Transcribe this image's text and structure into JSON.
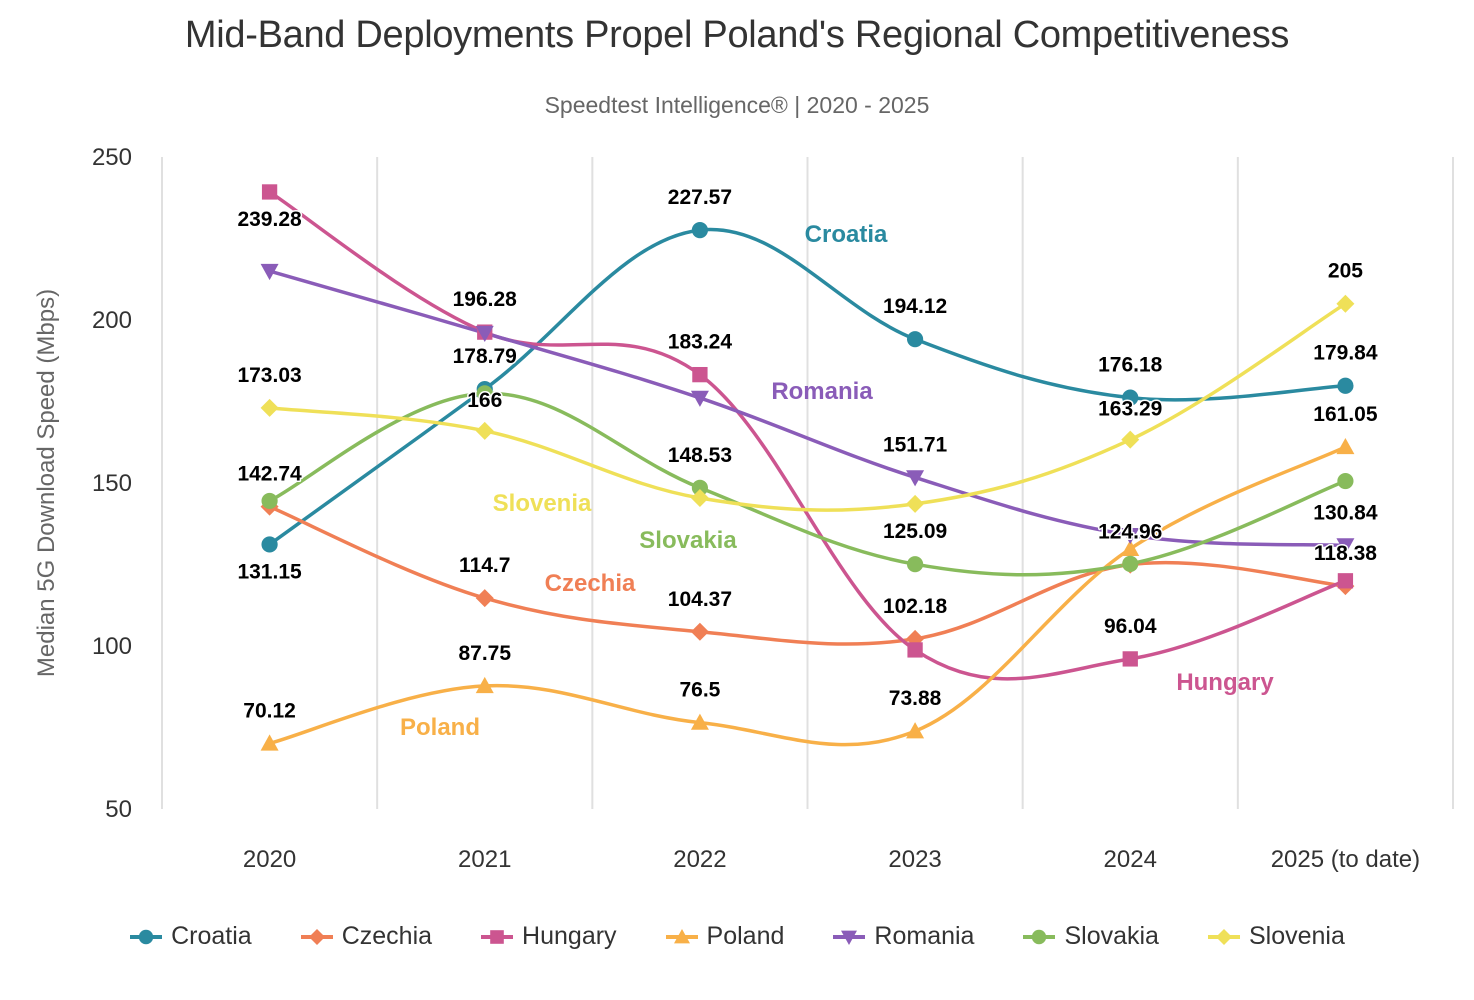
{
  "header": {
    "title": "Mid-Band Deployments Propel Poland's Regional Competitiveness",
    "subtitle": "Speedtest Intelligence® | 2020 - 2025"
  },
  "chart_data": {
    "type": "line",
    "title": "Mid-Band Deployments Propel Poland's Regional Competitiveness",
    "subtitle": "Speedtest Intelligence® | 2020 - 2025",
    "xlabel": "",
    "ylabel": "Median 5G Download Speed (Mbps)",
    "categories": [
      "2020",
      "2021",
      "2022",
      "2023",
      "2024",
      "2025 (to date)"
    ],
    "ylim": [
      50,
      250
    ],
    "yticks": [
      50,
      100,
      150,
      200,
      250
    ],
    "grid": "vertical",
    "legend_position": "bottom",
    "smooth": true,
    "series": [
      {
        "name": "Croatia",
        "color": "#2a8aa0",
        "marker": "circle",
        "values": [
          131.15,
          178.79,
          227.57,
          194.12,
          176.18,
          179.84
        ],
        "labels": [
          "131.15",
          "178.79",
          "227.57",
          "194.12",
          "176.18",
          "179.84"
        ],
        "inline_label": "Croatia"
      },
      {
        "name": "Czechia",
        "color": "#f07f55",
        "marker": "diamond",
        "values": [
          142.74,
          114.7,
          104.37,
          102.18,
          124.96,
          118.38
        ],
        "labels": [
          "142.74",
          "114.7",
          "104.37",
          "102.18",
          "124.96",
          "118.38"
        ],
        "inline_label": "Czechia"
      },
      {
        "name": "Hungary",
        "color": "#cc5590",
        "marker": "square",
        "values": [
          239.28,
          196.28,
          183.24,
          98.8,
          96.04,
          120.0
        ],
        "labels": [
          "239.28",
          "196.28",
          "183.24",
          "",
          "96.04",
          ""
        ],
        "inline_label": "Hungary"
      },
      {
        "name": "Poland",
        "color": "#f8b048",
        "marker": "triangle-up",
        "values": [
          70.12,
          87.75,
          76.5,
          73.88,
          129.8,
          161.05
        ],
        "labels": [
          "70.12",
          "87.75",
          "76.5",
          "73.88",
          "",
          "161.05"
        ],
        "inline_label": "Poland"
      },
      {
        "name": "Romania",
        "color": "#8a5cb8",
        "marker": "triangle-down",
        "values": [
          215.0,
          196.0,
          176.1,
          151.71,
          134.0,
          130.84
        ],
        "labels": [
          "",
          "",
          "",
          "151.71",
          "",
          "130.84"
        ],
        "inline_label": "Romania"
      },
      {
        "name": "Slovakia",
        "color": "#88bb5c",
        "marker": "circle",
        "values": [
          144.5,
          177.5,
          148.53,
          125.09,
          125.2,
          150.6
        ],
        "labels": [
          "",
          "",
          "148.53",
          "125.09",
          "",
          ""
        ],
        "inline_label": "Slovakia"
      },
      {
        "name": "Slovenia",
        "color": "#efe058",
        "marker": "diamond",
        "values": [
          173.03,
          166,
          145.4,
          143.6,
          163.29,
          205
        ],
        "labels": [
          "173.03",
          "166",
          "",
          "",
          "163.29",
          "205"
        ],
        "inline_label": "Slovenia"
      }
    ]
  }
}
